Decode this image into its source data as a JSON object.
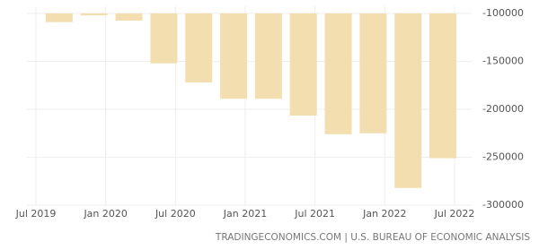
{
  "chart_data": {
    "type": "bar",
    "x": [
      "Sep 2019",
      "Dec 2019",
      "Mar 2020",
      "Jun 2020",
      "Sep 2020",
      "Dec 2020",
      "Mar 2021",
      "Jun 2021",
      "Sep 2021",
      "Dec 2021",
      "Mar 2022",
      "Jun 2022"
    ],
    "values": [
      -109000,
      -102000,
      -107500,
      -152000,
      -172000,
      -189000,
      -189000,
      -206500,
      -226000,
      -225000,
      -282000,
      -251000
    ],
    "color": "#f3deb0",
    "xticks": [
      "Jul 2019",
      "Jan 2020",
      "Jul 2020",
      "Jan 2021",
      "Jul 2021",
      "Jan 2022",
      "Jul 2022"
    ],
    "ylim": [
      -300000,
      -100000
    ],
    "yticks": [
      -100000,
      -150000,
      -200000,
      -250000,
      -300000
    ],
    "grid": true,
    "source": "TRADINGECONOMICS.COM | U.S. BUREAU OF ECONOMIC ANALYSIS"
  }
}
